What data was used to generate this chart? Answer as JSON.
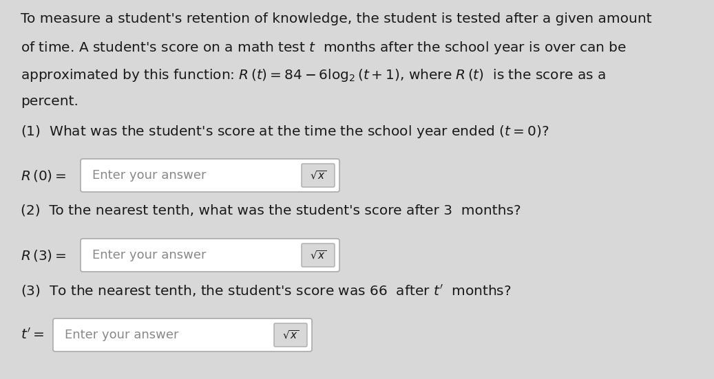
{
  "background_color": "#d8d8d8",
  "text_color": "#1a1a1a",
  "box_color": "#ffffff",
  "box_edge_color": "#aaaaaa",
  "placeholder_color": "#888888",
  "para_lines": [
    "To measure a student's retention of knowledge, the student is tested after a given amount",
    "of time. A student's score on a math test $t$  months after the school year is over can be",
    "approximated by this function: $R\\,(t) = 84 - 6\\log_2(t+1)$, where $R\\,(t)$  is the score as a",
    "percent."
  ],
  "q1_label": "(1)  What was the student's score at the time the school year ended $(t = 0)$?",
  "q1_answer_label": "$R\\,(0) =$",
  "q2_label": "(2)  To the nearest tenth, what was the student's score after 3  months?",
  "q2_answer_label": "$R\\,(3) =$",
  "q3_label": "(3)  To the nearest tenth, the student's score was 66  after $t'$  months?",
  "q3_answer_label": "$t' =$",
  "placeholder": "Enter your answer",
  "sqrt_symbol": "$\\sqrt{x}$",
  "font_size_para": 14.5,
  "font_size_label": 14.5,
  "font_size_box": 13.0,
  "font_size_sqrt": 11
}
